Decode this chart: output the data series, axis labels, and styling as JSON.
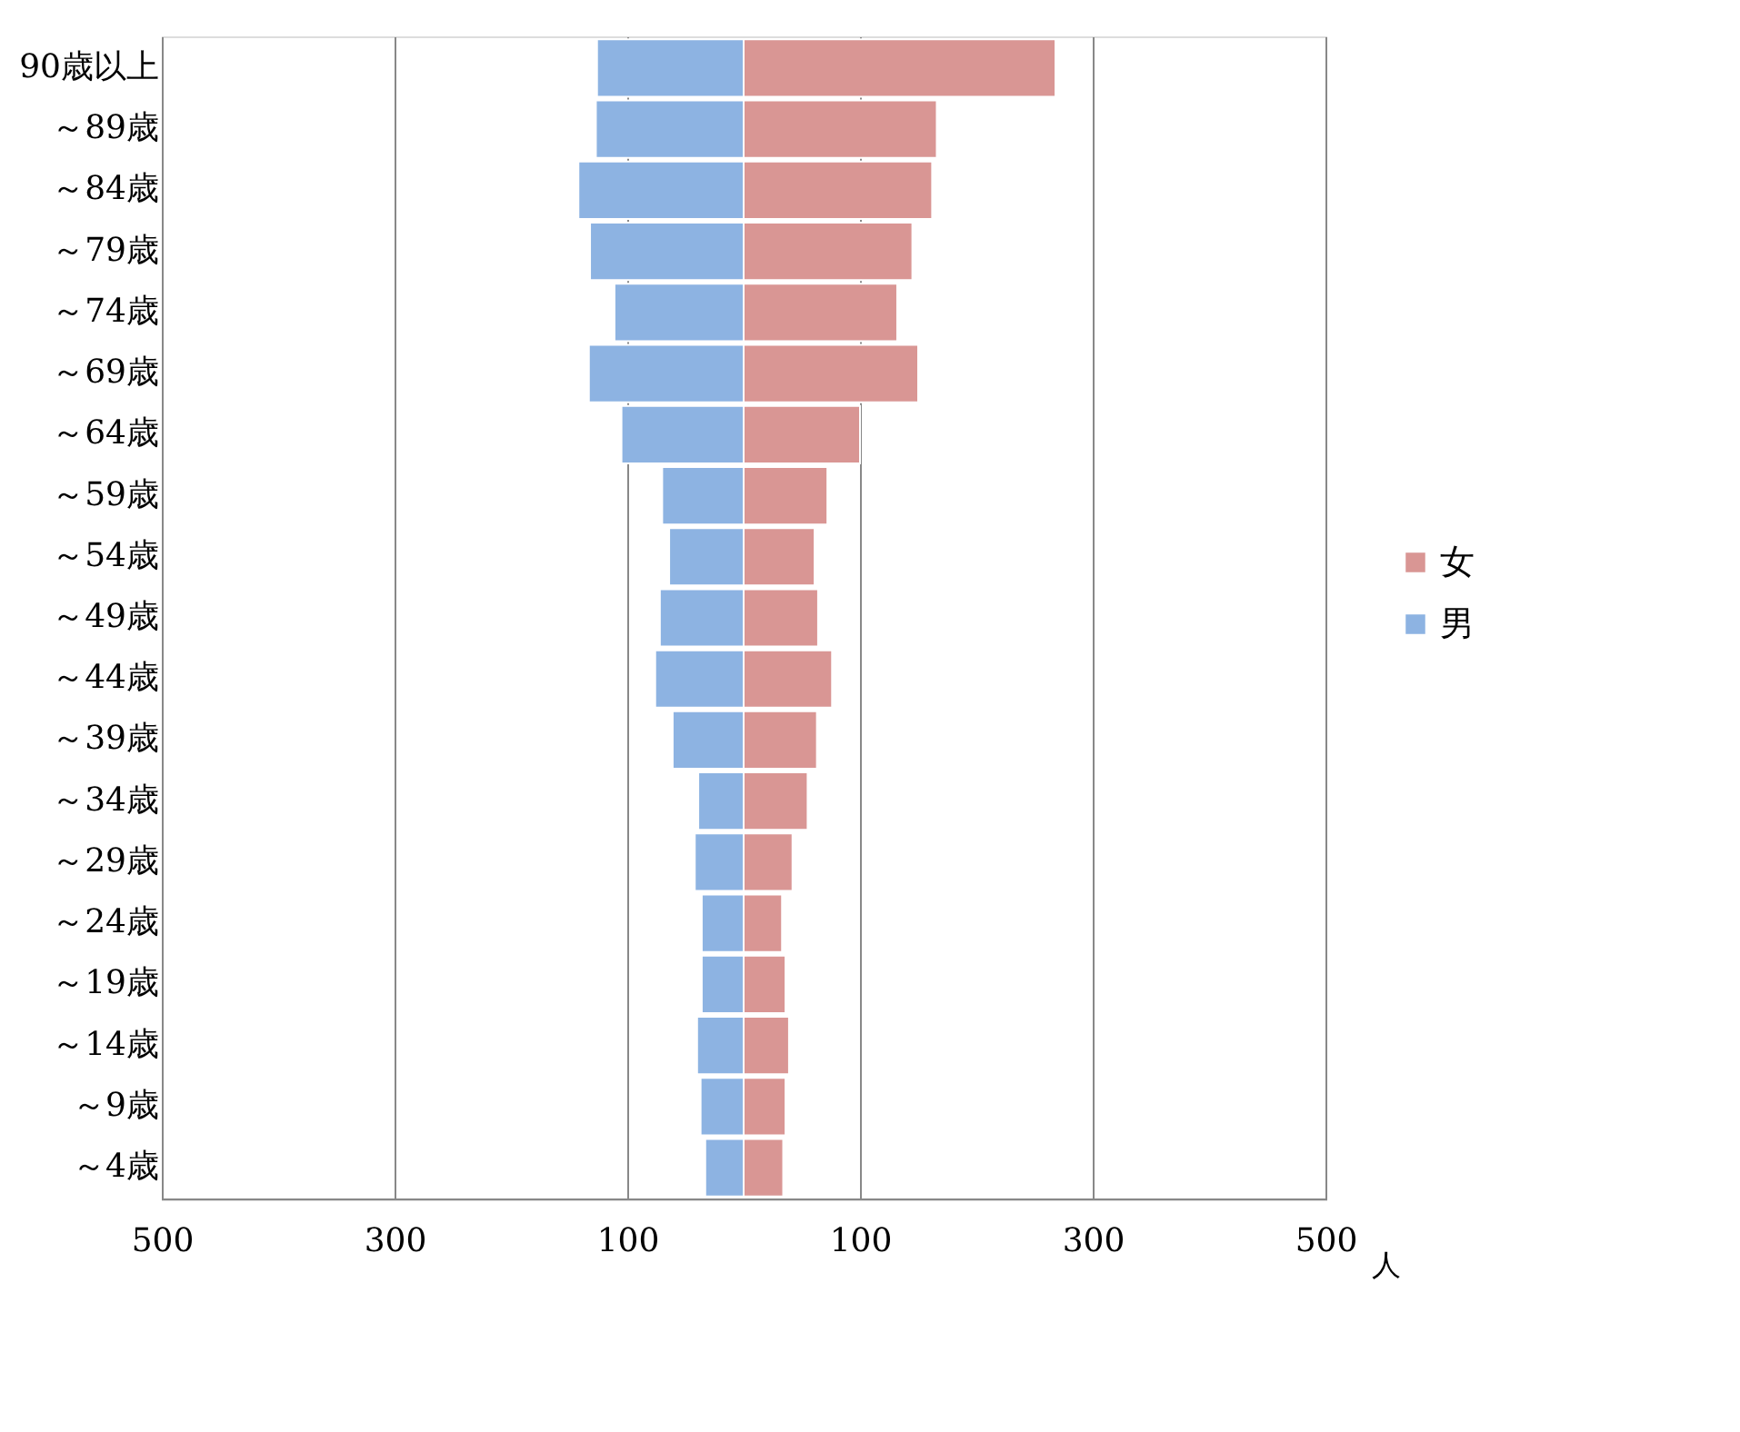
{
  "chart_data": {
    "type": "bar",
    "orientation": "horizontal",
    "xlabel": "人",
    "categories": [
      "90歳以上",
      "～89歳",
      "～84歳",
      "～79歳",
      "～74歳",
      "～69歳",
      "～64歳",
      "～59歳",
      "～54歳",
      "～49歳",
      "～44歳",
      "～39歳",
      "～34歳",
      "～29歳",
      "～24歳",
      "～19歳",
      "～14歳",
      "～9歳",
      "～4歳"
    ],
    "series": [
      {
        "name": "女",
        "color": "#d99694",
        "values": [
          268,
          166,
          162,
          145,
          132,
          150,
          100,
          72,
          61,
          64,
          76,
          63,
          55,
          42,
          33,
          36,
          39,
          36,
          34
        ]
      },
      {
        "name": "男",
        "color": "#8db3e2",
        "values": [
          -126,
          -127,
          -142,
          -132,
          -111,
          -133,
          -105,
          -70,
          -64,
          -72,
          -76,
          -61,
          -39,
          -42,
          -36,
          -36,
          -40,
          -37,
          -33
        ]
      }
    ],
    "xlim": [
      -500,
      500
    ],
    "xticks": [
      {
        "value": -500,
        "label": "500"
      },
      {
        "value": -300,
        "label": "300"
      },
      {
        "value": -100,
        "label": "100"
      },
      100,
      300,
      500
    ],
    "stacked": true,
    "grid": "x",
    "legend": "right"
  }
}
